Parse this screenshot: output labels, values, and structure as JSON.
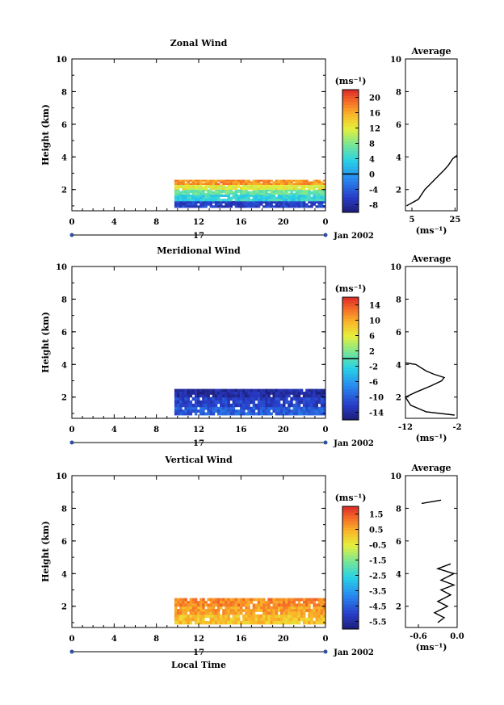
{
  "chart_data": [
    {
      "type": "heatmap",
      "title": "Zonal Wind",
      "ylabel": "Height (km)",
      "xlabel": "",
      "x_ticks": [
        "0",
        "4",
        "8",
        "12",
        "16",
        "20",
        "0"
      ],
      "y_ticks": [
        "2",
        "4",
        "6",
        "8",
        "10"
      ],
      "xlim": [
        0,
        24
      ],
      "ylim": [
        0.7,
        10
      ],
      "colorbar": {
        "unit": "(ms⁻¹)",
        "ticks": [
          "20",
          "16",
          "12",
          "8",
          "4",
          "0",
          "-4",
          "-8"
        ],
        "min": -10,
        "max": 22,
        "zero_line": 0
      },
      "date_label": "Jan 2002",
      "day_label": "17",
      "field": {
        "x_start": 9.7,
        "x_end": 24,
        "bands": [
          {
            "h0": 0.9,
            "h1": 1.3,
            "v": -6
          },
          {
            "h0": 1.3,
            "h1": 1.7,
            "v": 4
          },
          {
            "h0": 1.7,
            "h1": 2.0,
            "v": 7
          },
          {
            "h0": 2.0,
            "h1": 2.3,
            "v": 12
          },
          {
            "h0": 2.3,
            "h1": 2.6,
            "v": 17
          }
        ]
      },
      "average": {
        "title": "Average",
        "xlabel": "(ms⁻¹)",
        "x_ticks": [
          "5",
          "25"
        ],
        "xlim": [
          2,
          26
        ],
        "profile": [
          [
            2.5,
            1.0
          ],
          [
            8,
            1.4
          ],
          [
            11,
            2.0
          ],
          [
            14,
            2.4
          ],
          [
            17,
            2.8
          ],
          [
            20,
            3.2
          ],
          [
            22,
            3.5
          ],
          [
            24,
            3.9
          ],
          [
            26,
            4.1
          ]
        ]
      }
    },
    {
      "type": "heatmap",
      "title": "Meridional Wind",
      "ylabel": "Height (km)",
      "xlabel": "",
      "x_ticks": [
        "0",
        "4",
        "8",
        "12",
        "16",
        "20",
        "0"
      ],
      "y_ticks": [
        "2",
        "4",
        "6",
        "8",
        "10"
      ],
      "xlim": [
        0,
        24
      ],
      "ylim": [
        0.7,
        10
      ],
      "colorbar": {
        "unit": "(ms⁻¹)",
        "ticks": [
          "14",
          "10",
          "6",
          "2",
          "-2",
          "-6",
          "-10",
          "-14"
        ],
        "min": -16,
        "max": 16,
        "zero_line": 0
      },
      "date_label": "Jan 2002",
      "day_label": "17",
      "field": {
        "x_start": 9.7,
        "x_end": 24,
        "bands": [
          {
            "h0": 0.9,
            "h1": 1.4,
            "v": -10
          },
          {
            "h0": 1.4,
            "h1": 2.0,
            "v": -12
          },
          {
            "h0": 2.0,
            "h1": 2.5,
            "v": -14
          }
        ]
      },
      "average": {
        "title": "Average",
        "xlabel": "(ms⁻¹)",
        "x_ticks": [
          "-12",
          "-2"
        ],
        "xlim": [
          -12,
          -2
        ],
        "profile": [
          [
            -2.5,
            0.9
          ],
          [
            -8,
            1.1
          ],
          [
            -11,
            1.5
          ],
          [
            -12,
            2.0
          ],
          [
            -10,
            2.3
          ],
          [
            -7,
            2.7
          ],
          [
            -5,
            3.0
          ],
          [
            -4.5,
            3.2
          ],
          [
            -6.5,
            3.4
          ],
          [
            -8,
            3.6
          ],
          [
            -10,
            4.0
          ],
          [
            -12,
            4.1
          ]
        ]
      }
    },
    {
      "type": "heatmap",
      "title": "Vertical Wind",
      "ylabel": "Height (km)",
      "xlabel": "Local Time",
      "x_ticks": [
        "0",
        "4",
        "8",
        "12",
        "16",
        "20",
        "0"
      ],
      "y_ticks": [
        "2",
        "4",
        "6",
        "8",
        "10"
      ],
      "xlim": [
        0,
        24
      ],
      "ylim": [
        0.7,
        10
      ],
      "colorbar": {
        "unit": "(ms⁻¹)",
        "ticks": [
          "1.5",
          "0.5",
          "-0.5",
          "-1.5",
          "-2.5",
          "-3.5",
          "-4.5",
          "-5.5"
        ],
        "min": -6,
        "max": 2,
        "zero_line": null
      },
      "date_label": "Jan 2002",
      "day_label": "17",
      "field": {
        "x_start": 9.7,
        "x_end": 24,
        "bands": [
          {
            "h0": 0.9,
            "h1": 1.5,
            "v": 0.2
          },
          {
            "h0": 1.5,
            "h1": 2.0,
            "v": 0.6
          },
          {
            "h0": 2.0,
            "h1": 2.5,
            "v": 0.9
          }
        ]
      },
      "average": {
        "title": "Average",
        "xlabel": "(ms⁻¹)",
        "x_ticks": [
          "-0.6",
          "0.0"
        ],
        "xlim": [
          -0.8,
          0.0
        ],
        "profile": [
          [
            -0.3,
            1.0
          ],
          [
            -0.2,
            1.3
          ],
          [
            -0.35,
            1.6
          ],
          [
            -0.15,
            2.0
          ],
          [
            -0.3,
            2.3
          ],
          [
            -0.1,
            2.7
          ],
          [
            -0.25,
            3.0
          ],
          [
            -0.05,
            3.3
          ],
          [
            -0.25,
            3.6
          ],
          [
            -0.05,
            4.0
          ],
          [
            -0.3,
            4.3
          ],
          [
            -0.1,
            4.6
          ]
        ],
        "upper_segment": [
          [
            -0.55,
            8.3
          ],
          [
            -0.25,
            8.5
          ]
        ]
      }
    }
  ]
}
